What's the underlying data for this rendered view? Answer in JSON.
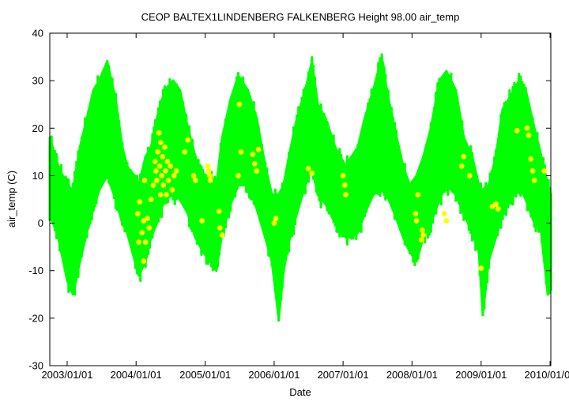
{
  "chart_data": {
    "type": "scatter",
    "title": "CEOP BALTEX1LINDENBERG FALKENBERG Height 98.00 air_temp",
    "xlabel": "Date",
    "ylabel": "air_temp (C)",
    "ylim": [
      -30,
      40
    ],
    "xlim": [
      "2002-10-01",
      "2010-01-05"
    ],
    "yticks": [
      "-30",
      "-20",
      "-10",
      "0",
      "10",
      "20",
      "30",
      "40"
    ],
    "xticks": [
      {
        "date": "2003-01-01",
        "label": "2003/01/01"
      },
      {
        "date": "2004-01-01",
        "label": "2004/01/01"
      },
      {
        "date": "2005-01-01",
        "label": "2005/01/01"
      },
      {
        "date": "2006-01-01",
        "label": "2006/01/01"
      },
      {
        "date": "2007-01-01",
        "label": "2007/01/01"
      },
      {
        "date": "2008-01-01",
        "label": "2008/01/01"
      },
      {
        "date": "2009-01-01",
        "label": "2009/01/01"
      },
      {
        "date": "2010-01-01",
        "label": "2010/01/01"
      }
    ],
    "grid": false,
    "legend": "none",
    "series": [
      {
        "color": "#00ff00",
        "envelope": [
          [
            "2002-10-01",
            2,
            18
          ],
          [
            "2002-11-15",
            -3,
            12
          ],
          [
            "2003-01-01",
            -12,
            8
          ],
          [
            "2003-02-01",
            -15,
            7
          ],
          [
            "2003-03-10",
            -8,
            16
          ],
          [
            "2003-04-15",
            -2,
            22
          ],
          [
            "2003-05-20",
            3,
            28
          ],
          [
            "2003-06-20",
            7,
            30
          ],
          [
            "2003-08-01",
            10,
            34
          ],
          [
            "2003-09-15",
            5,
            26
          ],
          [
            "2003-10-20",
            0,
            16
          ],
          [
            "2003-11-15",
            -2,
            12
          ],
          [
            "2004-01-15",
            -11,
            8
          ],
          [
            "2004-02-20",
            -8,
            14
          ],
          [
            "2004-03-20",
            -3,
            16
          ],
          [
            "2004-04-20",
            0,
            22
          ],
          [
            "2004-06-01",
            5,
            28
          ],
          [
            "2004-07-15",
            6,
            30
          ],
          [
            "2004-08-20",
            5,
            28
          ],
          [
            "2004-10-01",
            2,
            20
          ],
          [
            "2004-11-10",
            -3,
            14
          ],
          [
            "2004-12-20",
            -6,
            10
          ],
          [
            "2005-01-25",
            -8,
            10
          ],
          [
            "2005-03-01",
            -10,
            8
          ],
          [
            "2005-04-01",
            -2,
            18
          ],
          [
            "2005-05-15",
            4,
            26
          ],
          [
            "2005-06-25",
            8,
            31
          ],
          [
            "2005-08-15",
            8,
            28
          ],
          [
            "2005-10-01",
            3,
            22
          ],
          [
            "2005-11-15",
            -3,
            12
          ],
          [
            "2005-12-20",
            -8,
            6
          ],
          [
            "2006-01-25",
            -20,
            6
          ],
          [
            "2006-02-20",
            -10,
            8
          ],
          [
            "2006-03-20",
            -4,
            14
          ],
          [
            "2006-05-01",
            2,
            22
          ],
          [
            "2006-06-15",
            8,
            28
          ],
          [
            "2006-07-20",
            12,
            34
          ],
          [
            "2006-08-20",
            6,
            25
          ],
          [
            "2006-10-01",
            4,
            22
          ],
          [
            "2006-11-20",
            0,
            16
          ],
          [
            "2007-01-15",
            -3,
            12
          ],
          [
            "2007-02-15",
            -3,
            14
          ],
          [
            "2007-03-20",
            -2,
            16
          ],
          [
            "2007-04-25",
            2,
            22
          ],
          [
            "2007-06-10",
            6,
            28
          ],
          [
            "2007-07-25",
            7,
            35
          ],
          [
            "2007-08-20",
            6,
            28
          ],
          [
            "2007-10-01",
            2,
            20
          ],
          [
            "2007-11-15",
            -3,
            12
          ],
          [
            "2007-12-20",
            -6,
            8
          ],
          [
            "2008-01-25",
            -8,
            10
          ],
          [
            "2008-03-01",
            -3,
            14
          ],
          [
            "2008-04-10",
            0,
            20
          ],
          [
            "2008-05-25",
            5,
            30
          ],
          [
            "2008-07-01",
            8,
            32
          ],
          [
            "2008-08-20",
            6,
            28
          ],
          [
            "2008-10-01",
            2,
            18
          ],
          [
            "2008-11-15",
            -2,
            14
          ],
          [
            "2008-12-20",
            -6,
            8
          ],
          [
            "2009-01-10",
            -19,
            6
          ],
          [
            "2009-02-10",
            -8,
            8
          ],
          [
            "2009-03-20",
            -3,
            14
          ],
          [
            "2009-04-25",
            2,
            24
          ],
          [
            "2009-06-10",
            5,
            27
          ],
          [
            "2009-07-20",
            8,
            30
          ],
          [
            "2009-08-25",
            5,
            28
          ],
          [
            "2009-10-10",
            0,
            20
          ],
          [
            "2009-11-10",
            0,
            15
          ],
          [
            "2009-12-20",
            -15,
            8
          ],
          [
            "2010-01-05",
            -14,
            6
          ]
        ]
      },
      {
        "color": "#ffff00",
        "points": [
          [
            "2004-01-10",
            2
          ],
          [
            "2004-01-15",
            -4
          ],
          [
            "2004-01-20",
            4.5
          ],
          [
            "2004-02-01",
            -2
          ],
          [
            "2004-02-10",
            0.5
          ],
          [
            "2004-02-10",
            -8
          ],
          [
            "2004-02-15",
            9
          ],
          [
            "2004-02-20",
            -4
          ],
          [
            "2004-03-01",
            1
          ],
          [
            "2004-03-10",
            -1
          ],
          [
            "2004-03-20",
            5
          ],
          [
            "2004-04-01",
            8
          ],
          [
            "2004-04-10",
            13
          ],
          [
            "2004-04-15",
            11
          ],
          [
            "2004-04-20",
            9
          ],
          [
            "2004-04-25",
            15
          ],
          [
            "2004-05-01",
            19
          ],
          [
            "2004-05-05",
            12
          ],
          [
            "2004-05-10",
            6
          ],
          [
            "2004-05-10",
            17
          ],
          [
            "2004-05-15",
            10
          ],
          [
            "2004-05-20",
            14
          ],
          [
            "2004-05-25",
            8
          ],
          [
            "2004-06-01",
            16
          ],
          [
            "2004-06-05",
            11
          ],
          [
            "2004-06-10",
            6
          ],
          [
            "2004-06-15",
            13
          ],
          [
            "2004-06-20",
            9
          ],
          [
            "2004-07-01",
            12
          ],
          [
            "2004-07-10",
            7
          ],
          [
            "2004-07-20",
            10
          ],
          [
            "2004-08-01",
            11
          ],
          [
            "2004-09-15",
            15
          ],
          [
            "2004-10-01",
            17.5
          ],
          [
            "2004-11-01",
            10
          ],
          [
            "2004-11-10",
            9
          ],
          [
            "2004-12-15",
            0.5
          ],
          [
            "2005-01-15",
            12
          ],
          [
            "2005-01-20",
            11
          ],
          [
            "2005-01-25",
            10
          ],
          [
            "2005-01-28",
            9
          ],
          [
            "2005-03-15",
            2.5
          ],
          [
            "2005-03-20",
            -1
          ],
          [
            "2005-04-01",
            -2.5
          ],
          [
            "2005-07-01",
            25
          ],
          [
            "2005-07-10",
            15
          ],
          [
            "2005-06-25",
            10
          ],
          [
            "2005-09-10",
            14.5
          ],
          [
            "2005-09-20",
            12.5
          ],
          [
            "2005-10-01",
            11
          ],
          [
            "2005-10-10",
            15.5
          ],
          [
            "2006-01-01",
            0
          ],
          [
            "2006-01-10",
            1
          ],
          [
            "2006-07-01",
            11.5
          ],
          [
            "2006-07-20",
            10.5
          ],
          [
            "2007-01-01",
            10
          ],
          [
            "2007-01-10",
            8
          ],
          [
            "2007-01-15",
            6
          ],
          [
            "2008-01-20",
            2
          ],
          [
            "2008-01-25",
            0.5
          ],
          [
            "2008-02-01",
            6
          ],
          [
            "2008-02-20",
            -3.5
          ],
          [
            "2008-02-25",
            -1.5
          ],
          [
            "2008-03-01",
            -2.5
          ],
          [
            "2008-06-20",
            2
          ],
          [
            "2008-07-01",
            0.5
          ],
          [
            "2008-09-20",
            12
          ],
          [
            "2008-10-01",
            14
          ],
          [
            "2008-11-01",
            10
          ],
          [
            "2009-01-01",
            -9.5
          ],
          [
            "2009-03-01",
            3.5
          ],
          [
            "2009-03-20",
            4
          ],
          [
            "2009-04-01",
            3
          ],
          [
            "2009-07-10",
            19.5
          ],
          [
            "2009-09-01",
            20
          ],
          [
            "2009-09-10",
            18.5
          ],
          [
            "2009-09-20",
            13.5
          ],
          [
            "2009-10-01",
            11
          ],
          [
            "2009-10-10",
            9
          ],
          [
            "2009-12-01",
            11
          ]
        ]
      }
    ]
  }
}
